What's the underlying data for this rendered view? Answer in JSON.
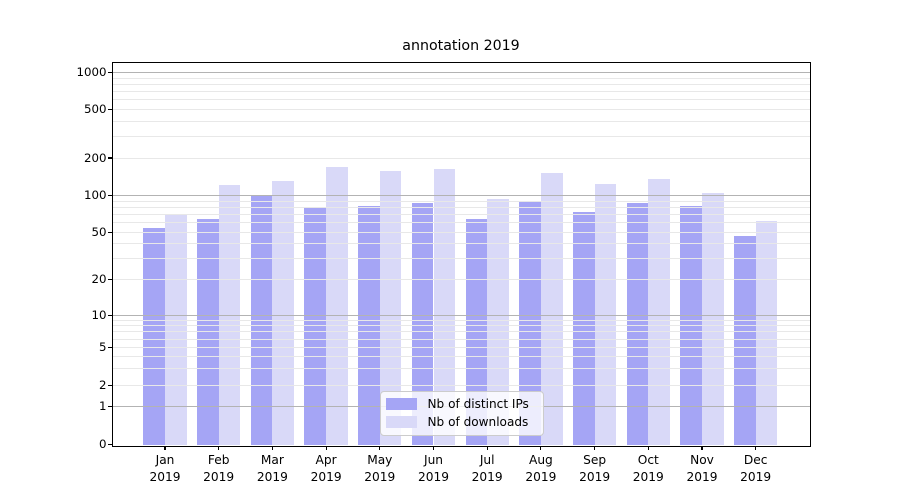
{
  "chart_data": {
    "type": "bar",
    "title": "annotation 2019",
    "categories": [
      "Jan",
      "Feb",
      "Mar",
      "Apr",
      "May",
      "Jun",
      "Jul",
      "Aug",
      "Sep",
      "Oct",
      "Nov",
      "Dec"
    ],
    "category_year": "2019",
    "series": [
      {
        "name": "Nb of distinct IPs",
        "color": "#a5a5f5",
        "values": [
          54,
          65,
          100,
          79,
          82,
          87,
          64,
          91,
          74,
          87,
          83,
          47
        ]
      },
      {
        "name": "Nb of downloads",
        "color": "#d9d9f8",
        "values": [
          70,
          122,
          130,
          170,
          158,
          163,
          94,
          151,
          124,
          136,
          106,
          62
        ]
      }
    ],
    "yscale": "symlog",
    "y_ticks": [
      0,
      1,
      2,
      5,
      10,
      20,
      50,
      100,
      200,
      500,
      1000
    ],
    "ylim": [
      0,
      1200
    ],
    "xlabel": "",
    "ylabel": "",
    "grid": "major-and-minor",
    "legend_position": "lower-center"
  },
  "colors": {
    "major_grid": "#b3b3b3",
    "minor_grid": "#e8e8e8",
    "spine": "#000000",
    "text": "#000000",
    "legend_border": "#cccccc",
    "background": "#ffffff"
  }
}
